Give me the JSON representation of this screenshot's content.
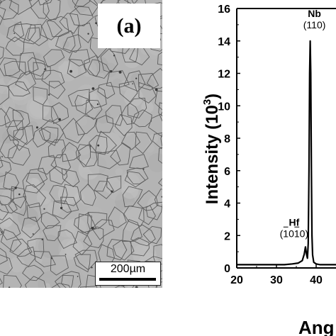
{
  "figure": {
    "panel_label": "(a)",
    "scale_bar_label": "200µm"
  },
  "micrograph": {
    "description_icon": "grain-structure-micrograph"
  },
  "chart_data": {
    "type": "line",
    "ylabel_main": "Intensity (10",
    "ylabel_exp": "3",
    "ylabel_close": ")",
    "xlabel": "Ang",
    "xlim": [
      20,
      45
    ],
    "ylim": [
      0,
      16
    ],
    "xticks": [
      20,
      30,
      40
    ],
    "yticks": [
      0,
      2,
      4,
      6,
      8,
      10,
      12,
      14,
      16
    ],
    "series": [
      {
        "x": [
          20,
          22,
          24,
          26,
          28,
          30,
          32,
          34,
          35.5,
          36.5,
          37.0,
          37.3,
          37.6,
          37.8,
          38.0,
          38.2,
          38.35,
          38.5,
          38.65,
          38.8,
          38.95,
          39.1,
          39.4,
          40,
          41,
          42,
          43,
          44,
          45
        ],
        "y": [
          0.2,
          0.2,
          0.2,
          0.2,
          0.2,
          0.2,
          0.2,
          0.25,
          0.3,
          0.45,
          0.85,
          1.3,
          0.8,
          0.6,
          1.5,
          6.0,
          12.0,
          14.0,
          12.0,
          6.0,
          2.0,
          0.8,
          0.35,
          0.25,
          0.2,
          0.2,
          0.2,
          0.2,
          0.2
        ],
        "color": "#000000"
      }
    ],
    "annotations": [
      {
        "element": "Nb",
        "miller": "(110)",
        "x": 38.5,
        "y": 14.0
      },
      {
        "element": "Hf",
        "miller": "(1010)",
        "miller_bars": [
          1,
          3
        ],
        "x": 37.3,
        "y": 1.3
      }
    ]
  }
}
